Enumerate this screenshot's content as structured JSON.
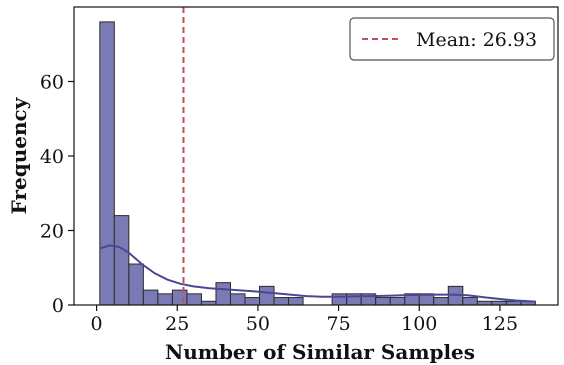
{
  "chart_data": {
    "type": "bar",
    "subtype": "histogram",
    "title": "",
    "xlabel": "Number of Similar Samples",
    "ylabel": "Frequency",
    "xlim": [
      -7,
      143
    ],
    "ylim": [
      0,
      80
    ],
    "xticks": [
      0,
      25,
      50,
      75,
      100,
      125
    ],
    "yticks": [
      0,
      20,
      40,
      60
    ],
    "bin_width": 4.5,
    "bins": [
      {
        "x0": 1,
        "x1": 5.5,
        "count": 76
      },
      {
        "x0": 5.5,
        "x1": 10,
        "count": 24
      },
      {
        "x0": 10,
        "x1": 14.5,
        "count": 11
      },
      {
        "x0": 14.5,
        "x1": 19,
        "count": 4
      },
      {
        "x0": 19,
        "x1": 23.5,
        "count": 3
      },
      {
        "x0": 23.5,
        "x1": 28,
        "count": 4
      },
      {
        "x0": 28,
        "x1": 32.5,
        "count": 3
      },
      {
        "x0": 32.5,
        "x1": 37,
        "count": 1
      },
      {
        "x0": 37,
        "x1": 41.5,
        "count": 6
      },
      {
        "x0": 41.5,
        "x1": 46,
        "count": 3
      },
      {
        "x0": 46,
        "x1": 50.5,
        "count": 2
      },
      {
        "x0": 50.5,
        "x1": 55,
        "count": 5
      },
      {
        "x0": 55,
        "x1": 59.5,
        "count": 2
      },
      {
        "x0": 59.5,
        "x1": 64,
        "count": 2
      },
      {
        "x0": 64,
        "x1": 68.5,
        "count": 0
      },
      {
        "x0": 68.5,
        "x1": 73,
        "count": 0
      },
      {
        "x0": 73,
        "x1": 77.5,
        "count": 3
      },
      {
        "x0": 77.5,
        "x1": 82,
        "count": 3
      },
      {
        "x0": 82,
        "x1": 86.5,
        "count": 3
      },
      {
        "x0": 86.5,
        "x1": 91,
        "count": 2
      },
      {
        "x0": 91,
        "x1": 95.5,
        "count": 2
      },
      {
        "x0": 95.5,
        "x1": 100,
        "count": 3
      },
      {
        "x0": 100,
        "x1": 104.5,
        "count": 3
      },
      {
        "x0": 104.5,
        "x1": 109,
        "count": 2
      },
      {
        "x0": 109,
        "x1": 113.5,
        "count": 5
      },
      {
        "x0": 113.5,
        "x1": 118,
        "count": 2
      },
      {
        "x0": 118,
        "x1": 122.5,
        "count": 1
      },
      {
        "x0": 122.5,
        "x1": 127,
        "count": 1
      },
      {
        "x0": 127,
        "x1": 131.5,
        "count": 1
      },
      {
        "x0": 131.5,
        "x1": 136,
        "count": 1
      }
    ],
    "kde": {
      "x": [
        1,
        4,
        7,
        10,
        14,
        18,
        22,
        26,
        30,
        35,
        40,
        45,
        50,
        55,
        60,
        65,
        70,
        75,
        80,
        85,
        90,
        95,
        100,
        105,
        110,
        115,
        120,
        125,
        130,
        136
      ],
      "y": [
        15.2,
        16.0,
        15.6,
        14.0,
        11.0,
        8.5,
        6.8,
        5.7,
        5.0,
        4.5,
        4.2,
        3.9,
        3.6,
        3.2,
        2.8,
        2.4,
        2.2,
        2.2,
        2.3,
        2.4,
        2.5,
        2.6,
        2.7,
        2.8,
        2.8,
        2.6,
        2.1,
        1.6,
        1.2,
        0.9
      ]
    },
    "mean_line": {
      "value": 26.93,
      "label": "Mean: 26.93"
    },
    "legend": {
      "position": "top-right",
      "entries": [
        "Mean: 26.93"
      ]
    },
    "grid": false,
    "colors": {
      "bar_fill": "#7b7ab4",
      "bar_edge": "#2b2b2b",
      "kde_line": "#4b4796",
      "mean_line": "#c0505a",
      "axis": "#111111"
    }
  }
}
